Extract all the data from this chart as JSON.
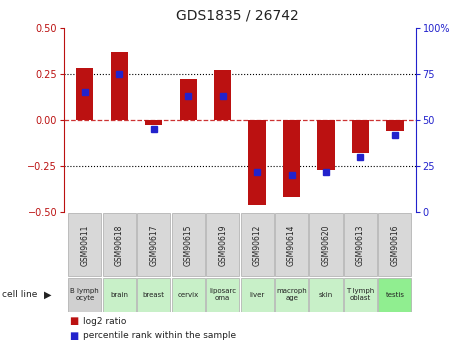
{
  "title": "GDS1835 / 26742",
  "gsm_labels": [
    "GSM90611",
    "GSM90618",
    "GSM90617",
    "GSM90615",
    "GSM90619",
    "GSM90612",
    "GSM90614",
    "GSM90620",
    "GSM90613",
    "GSM90616"
  ],
  "cell_labels": [
    "B lymph\nocyte",
    "brain",
    "breast",
    "cervix",
    "liposarc\noma",
    "liver",
    "macroph\nage",
    "skin",
    "T lymph\noblast",
    "testis"
  ],
  "cell_bg_colors": [
    "#d0d0d0",
    "#c8f0c8",
    "#c8f0c8",
    "#c8f0c8",
    "#c8f0c8",
    "#c8f0c8",
    "#c8f0c8",
    "#c8f0c8",
    "#c8f0c8",
    "#90ee90"
  ],
  "log2_ratio": [
    0.28,
    0.37,
    -0.03,
    0.22,
    0.27,
    -0.46,
    -0.42,
    -0.27,
    -0.18,
    -0.06
  ],
  "percentile_rank": [
    65,
    75,
    45,
    63,
    63,
    22,
    20,
    22,
    30,
    42
  ],
  "ylim": [
    -0.5,
    0.5
  ],
  "yticks_left": [
    -0.5,
    -0.25,
    0,
    0.25,
    0.5
  ],
  "yticks_right": [
    0,
    25,
    50,
    75,
    100
  ],
  "bar_color": "#bb1111",
  "dot_color": "#2222cc",
  "zero_line_color": "#cc3333",
  "grid_color": "#000000",
  "bg_color": "#ffffff",
  "bar_width": 0.5
}
